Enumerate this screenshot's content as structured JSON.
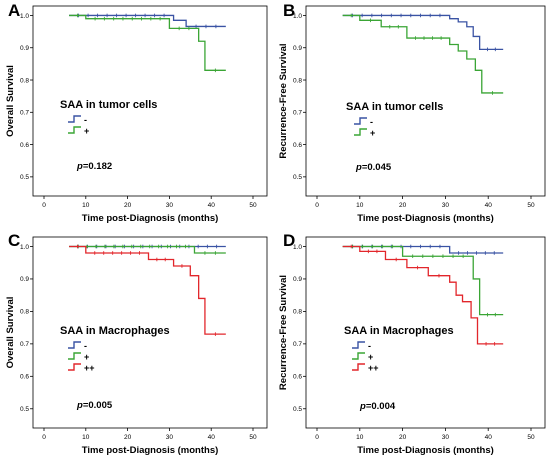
{
  "chart_data": [
    {
      "panel": "A",
      "type": "line",
      "xlabel": "Time post-Diagnosis (months)",
      "ylabel": "Overall Survival",
      "xlim": [
        0,
        50
      ],
      "ylim": [
        0.45,
        1.02
      ],
      "xticks": [
        "0",
        "10",
        "20",
        "30",
        "40",
        "50"
      ],
      "yticks": [
        "0.5",
        "0.6",
        "0.7",
        "0.8",
        "0.9",
        "1.0"
      ],
      "legend_title": "SAA in tumor cells",
      "p_prefix": "p",
      "p_value": "=0.182",
      "series": [
        {
          "name": "-",
          "color": "#3a53a4",
          "x": [
            6,
            31,
            34,
            43.5
          ],
          "y": [
            1.0,
            0.985,
            0.966,
            0.966
          ]
        },
        {
          "name": "+",
          "color": "#3aa535",
          "x": [
            6,
            10,
            30,
            37,
            38.5,
            43.5
          ],
          "y": [
            1.0,
            0.99,
            0.96,
            0.92,
            0.83,
            0.83
          ]
        }
      ]
    },
    {
      "panel": "B",
      "type": "line",
      "xlabel": "Time post-Diagnosis (months)",
      "ylabel": "Recurrence-Free Survival",
      "xlim": [
        0,
        50
      ],
      "ylim": [
        0.45,
        1.02
      ],
      "xticks": [
        "0",
        "10",
        "20",
        "30",
        "40",
        "50"
      ],
      "yticks": [
        "0.5",
        "0.6",
        "0.7",
        "0.8",
        "0.9",
        "1.0"
      ],
      "legend_title": "SAA in tumor cells",
      "p_prefix": "p",
      "p_value": "=0.045",
      "series": [
        {
          "name": "-",
          "color": "#3a53a4",
          "x": [
            6,
            31,
            33,
            35,
            36.5,
            38,
            43.5
          ],
          "y": [
            1.0,
            0.99,
            0.98,
            0.965,
            0.935,
            0.895,
            0.895
          ]
        },
        {
          "name": "+",
          "color": "#3aa535",
          "x": [
            6,
            10,
            15,
            21,
            31,
            33,
            35,
            37,
            38.5,
            43.5
          ],
          "y": [
            1.0,
            0.985,
            0.965,
            0.93,
            0.91,
            0.89,
            0.865,
            0.83,
            0.76,
            0.76
          ]
        }
      ]
    },
    {
      "panel": "C",
      "type": "line",
      "xlabel": "Time post-Diagnosis (months)",
      "ylabel": "Overall Survival",
      "xlim": [
        0,
        50
      ],
      "ylim": [
        0.45,
        1.02
      ],
      "xticks": [
        "0",
        "10",
        "20",
        "30",
        "40",
        "50"
      ],
      "yticks": [
        "0.5",
        "0.6",
        "0.7",
        "0.8",
        "0.9",
        "1.0"
      ],
      "legend_title": "SAA in Macrophages",
      "p_prefix": "p",
      "p_value": "=0.005",
      "series": [
        {
          "name": "-",
          "color": "#3a53a4",
          "x": [
            6,
            43.5
          ],
          "y": [
            1.0,
            1.0
          ]
        },
        {
          "name": "+",
          "color": "#3aa535",
          "x": [
            6,
            36,
            43.5
          ],
          "y": [
            1.0,
            0.98,
            0.98
          ]
        },
        {
          "name": "++",
          "color": "#e2262b",
          "x": [
            6,
            10,
            25,
            31,
            35,
            37,
            38.5,
            43.5
          ],
          "y": [
            1.0,
            0.98,
            0.96,
            0.94,
            0.91,
            0.84,
            0.73,
            0.73
          ]
        }
      ]
    },
    {
      "panel": "D",
      "type": "line",
      "xlabel": "Time post-Diagnosis (months)",
      "ylabel": "Recurrence-Free Survival",
      "xlim": [
        0,
        50
      ],
      "ylim": [
        0.45,
        1.02
      ],
      "xticks": [
        "0",
        "10",
        "20",
        "30",
        "40",
        "50"
      ],
      "yticks": [
        "0.5",
        "0.6",
        "0.7",
        "0.8",
        "0.9",
        "1.0"
      ],
      "legend_title": "SAA in Macrophages",
      "p_prefix": "p",
      "p_value": "=0.004",
      "series": [
        {
          "name": "-",
          "color": "#3a53a4",
          "x": [
            6,
            31,
            43.5
          ],
          "y": [
            1.0,
            0.98,
            0.98
          ]
        },
        {
          "name": "+",
          "color": "#3aa535",
          "x": [
            6,
            20,
            36.5,
            38,
            43.5
          ],
          "y": [
            1.0,
            0.97,
            0.9,
            0.79,
            0.79
          ]
        },
        {
          "name": "++",
          "color": "#e2262b",
          "x": [
            6,
            10,
            16,
            21,
            26,
            31,
            32.5,
            34,
            36,
            37.5,
            43.5
          ],
          "y": [
            1.0,
            0.985,
            0.96,
            0.935,
            0.91,
            0.89,
            0.85,
            0.83,
            0.78,
            0.7,
            0.7
          ]
        }
      ]
    }
  ]
}
